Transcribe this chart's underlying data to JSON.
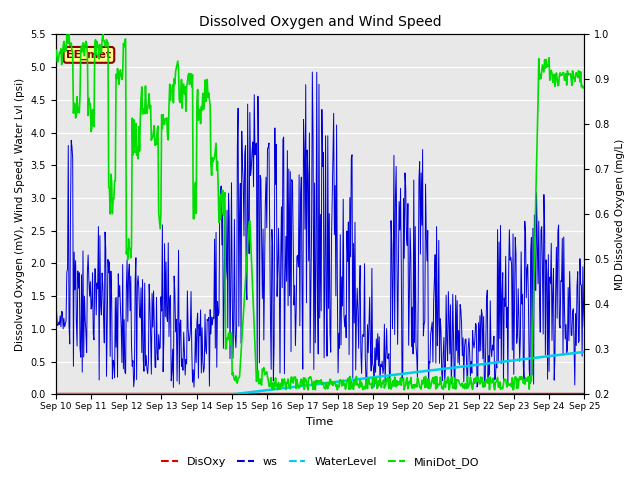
{
  "title": "Dissolved Oxygen and Wind Speed",
  "xlabel": "Time",
  "ylabel_left": "Dissolved Oxygen (mV), Wind Speed, Water Lvl (psi)",
  "ylabel_right": "MD Dissolved Oxygen (mg/L)",
  "annotation": "EE_met",
  "ylim_left": [
    0.0,
    5.5
  ],
  "ylim_right": [
    0.2,
    1.0
  ],
  "yticks_left": [
    0.0,
    0.5,
    1.0,
    1.5,
    2.0,
    2.5,
    3.0,
    3.5,
    4.0,
    4.5,
    5.0,
    5.5
  ],
  "yticks_right": [
    0.2,
    0.3,
    0.4,
    0.5,
    0.6,
    0.7,
    0.8,
    0.9,
    1.0
  ],
  "xtick_labels": [
    "Sep 10",
    "Sep 11",
    "Sep 12",
    "Sep 13",
    "Sep 14",
    "Sep 15",
    "Sep 16",
    "Sep 17",
    "Sep 18",
    "Sep 19",
    "Sep 20",
    "Sep 21",
    "Sep 22",
    "Sep 23",
    "Sep 24",
    "Sep 25"
  ],
  "colors": {
    "DisOxy": "#dd0000",
    "ws": "#0000dd",
    "WaterLevel": "#00ccee",
    "MiniDot_DO": "#00dd00"
  },
  "background_color": "#e8e8e8",
  "legend_entries": [
    "DisOxy",
    "ws",
    "WaterLevel",
    "MiniDot_DO"
  ]
}
